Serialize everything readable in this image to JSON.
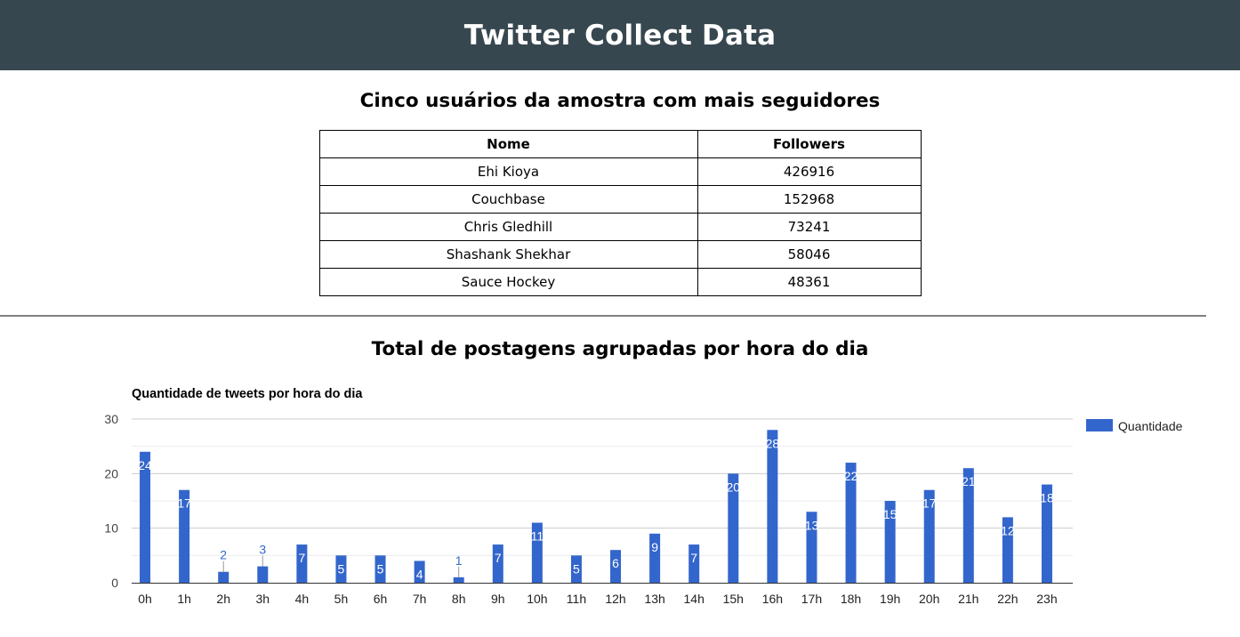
{
  "header": {
    "title": "Twitter Collect Data"
  },
  "table_section": {
    "title": "Cinco usuários da amostra com mais seguidores",
    "columns": [
      "Nome",
      "Followers"
    ],
    "rows": [
      [
        "Ehi Kioya",
        "426916"
      ],
      [
        "Couchbase",
        "152968"
      ],
      [
        "Chris Gledhill",
        "73241"
      ],
      [
        "Shashank Shekhar",
        "58046"
      ],
      [
        "Sauce Hockey",
        "48361"
      ]
    ]
  },
  "chart_section": {
    "title": "Total de postagens agrupadas por hora do dia"
  },
  "chart_data": {
    "type": "bar",
    "title": "Quantidade de tweets por hora do dia",
    "xlabel": "",
    "ylabel": "",
    "categories": [
      "0h",
      "1h",
      "2h",
      "3h",
      "4h",
      "5h",
      "6h",
      "7h",
      "8h",
      "9h",
      "10h",
      "11h",
      "12h",
      "13h",
      "14h",
      "15h",
      "16h",
      "17h",
      "18h",
      "19h",
      "20h",
      "21h",
      "22h",
      "23h"
    ],
    "series": [
      {
        "name": "Quantidade",
        "values": [
          24,
          17,
          2,
          3,
          7,
          5,
          5,
          4,
          1,
          7,
          11,
          5,
          6,
          9,
          7,
          20,
          28,
          13,
          22,
          15,
          17,
          21,
          12,
          18
        ]
      }
    ],
    "ylim": [
      0,
      30
    ],
    "yticks": [
      0,
      10,
      20,
      30
    ],
    "grid": true,
    "legend_position": "right",
    "colors": {
      "bar": "#3366cc",
      "label_outside": "#3366cc",
      "label_inside": "#ffffff"
    }
  }
}
